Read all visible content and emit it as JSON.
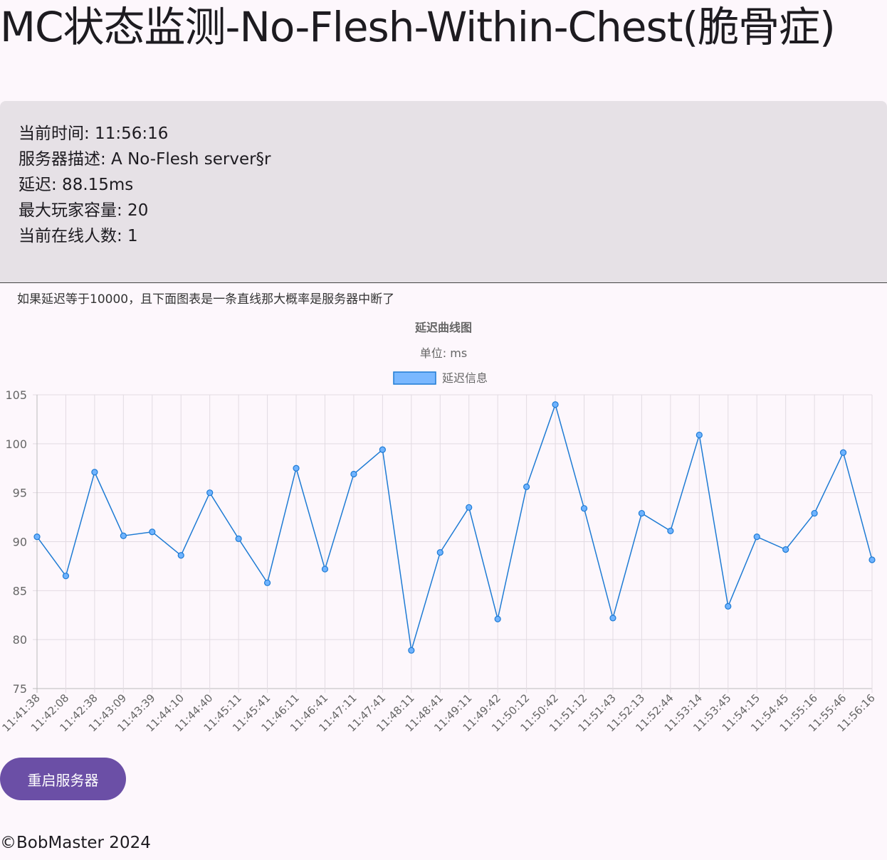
{
  "title": "MC状态监测-No-Flesh-Within-Chest(脆骨症)",
  "info": {
    "time": "当前时间: 11:56:16",
    "description": "服务器描述: A No-Flesh server§r",
    "latency": "延迟: 88.15ms",
    "max_players": "最大玩家容量: 20",
    "online": "当前在线人数: 1"
  },
  "note": "如果延迟等于10000，且下面图表是一条直线那大概率是服务器中断了",
  "restart_button": "重启服务器",
  "footer": "©BobMaster 2024",
  "chart_data": {
    "type": "line",
    "title": "延迟曲线图",
    "subtitle": "单位: ms",
    "legend": "top",
    "grid": true,
    "ylim": [
      75,
      105
    ],
    "yticks": [
      75,
      80,
      85,
      90,
      95,
      100,
      105
    ],
    "colors": {
      "line": "#1e7bd4",
      "point": "#6fb3ff",
      "legend_fill": "#7ab8ff"
    },
    "categories": [
      "11:41:38",
      "11:42:08",
      "11:42:38",
      "11:43:09",
      "11:43:39",
      "11:44:10",
      "11:44:40",
      "11:45:11",
      "11:45:41",
      "11:46:11",
      "11:46:41",
      "11:47:11",
      "11:47:41",
      "11:48:11",
      "11:48:41",
      "11:49:11",
      "11:49:42",
      "11:50:12",
      "11:50:42",
      "11:51:12",
      "11:51:43",
      "11:52:13",
      "11:52:44",
      "11:53:14",
      "11:53:45",
      "11:54:15",
      "11:54:45",
      "11:55:16",
      "11:55:46",
      "11:56:16"
    ],
    "series": [
      {
        "name": "延迟信息",
        "values": [
          90.5,
          86.5,
          97.1,
          90.6,
          91.0,
          88.6,
          95.0,
          90.3,
          85.8,
          97.5,
          87.2,
          96.9,
          99.4,
          78.9,
          88.9,
          93.5,
          82.1,
          95.6,
          104.0,
          93.4,
          82.2,
          92.9,
          91.1,
          100.9,
          83.4,
          90.5,
          89.2,
          92.9,
          99.1,
          88.15
        ]
      }
    ]
  }
}
